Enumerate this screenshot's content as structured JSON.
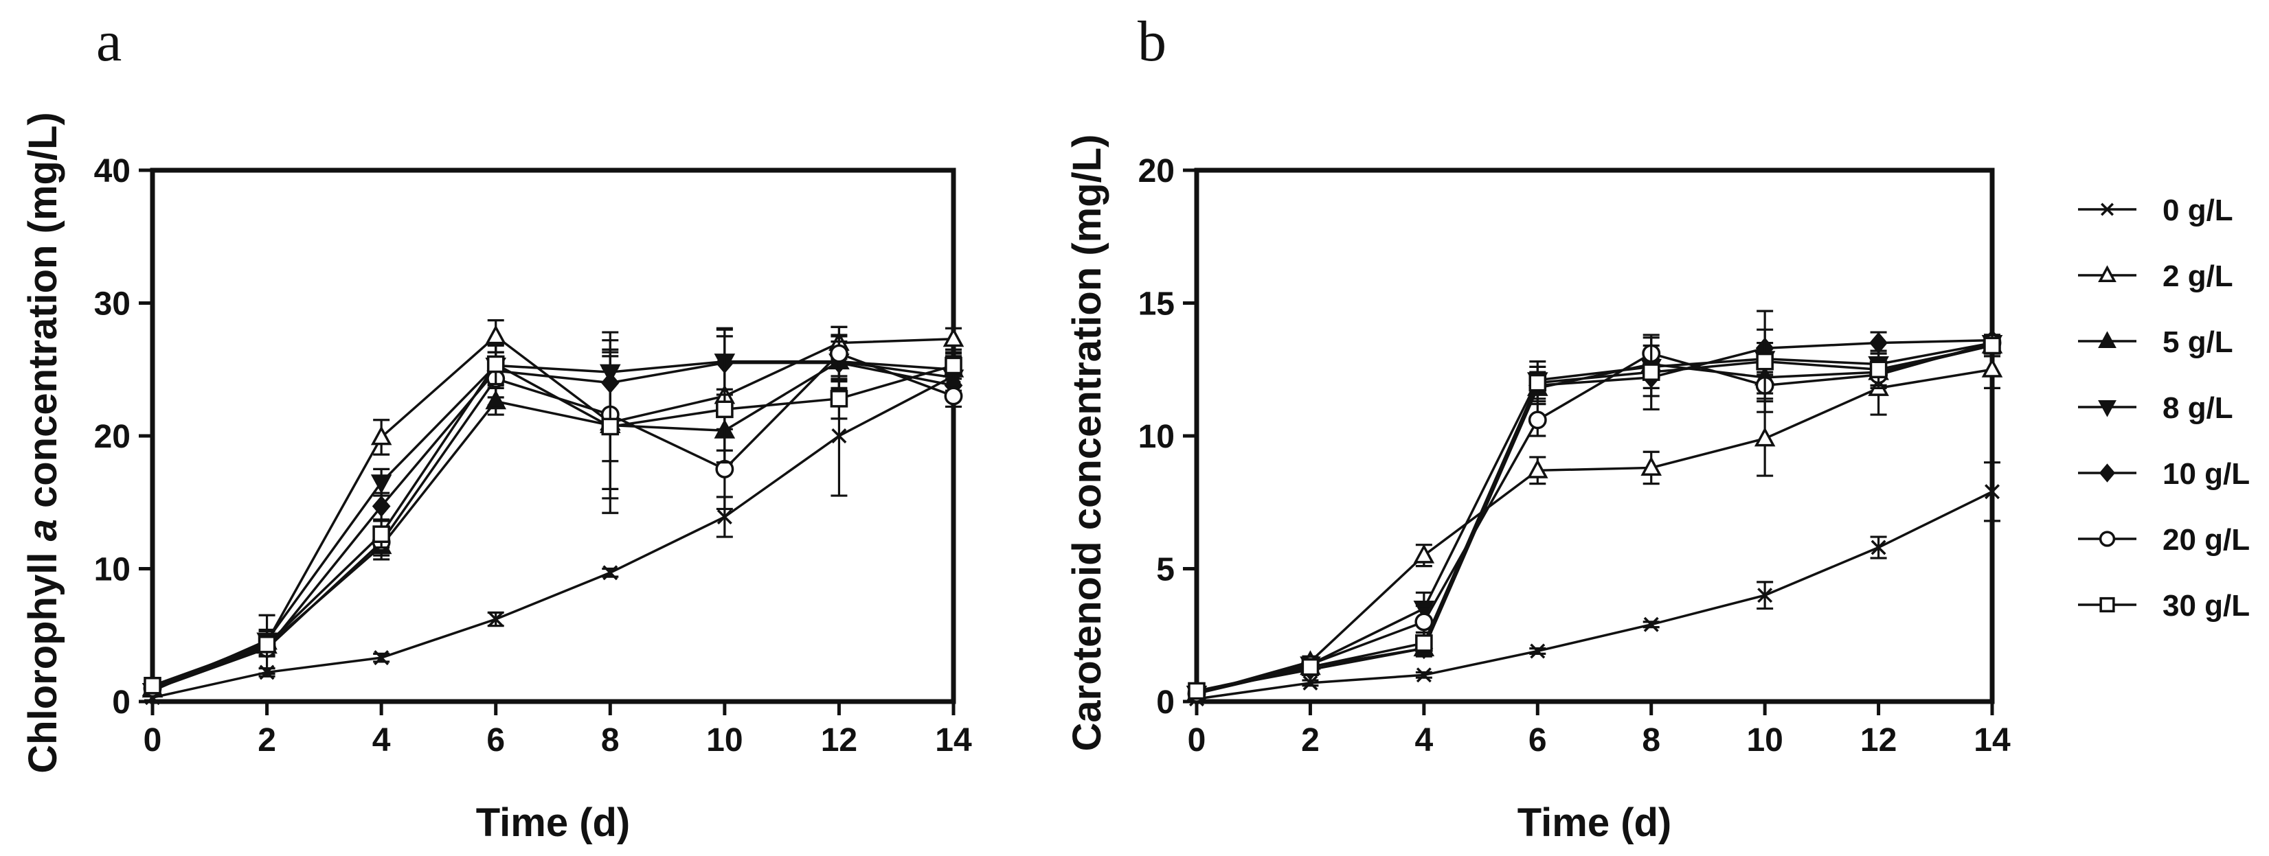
{
  "chart_data": [
    {
      "type": "line",
      "panel": "a",
      "xlabel": "Time (d)",
      "ylabel": "Chlorophyll a concentration (mg/L)",
      "ylabel_parts": {
        "pre": "Chlorophyll ",
        "italic": "a",
        "post": " concentration (mg/L)"
      },
      "xlim": [
        0,
        14
      ],
      "ylim": [
        0,
        40
      ],
      "xticks": [
        0,
        2,
        4,
        6,
        8,
        10,
        12,
        14
      ],
      "yticks": [
        0,
        10,
        20,
        30,
        40
      ],
      "x": [
        0,
        2,
        4,
        6,
        8,
        10,
        12,
        14
      ],
      "series": [
        {
          "name": "0 g/L",
          "marker": "x",
          "values": [
            0.3,
            2.2,
            3.3,
            6.2,
            9.7,
            13.9,
            20.0,
            24.5
          ],
          "err": [
            0.2,
            0.3,
            0.3,
            0.5,
            0.3,
            1.5,
            4.5,
            1.5
          ]
        },
        {
          "name": "2 g/L",
          "marker": "triangle-open",
          "values": [
            1.0,
            4.5,
            19.9,
            27.5,
            21.0,
            23.0,
            27.0,
            27.3
          ],
          "err": [
            0.3,
            0.8,
            1.3,
            1.2,
            5.0,
            5.0,
            1.2,
            0.8
          ]
        },
        {
          "name": "5 g/L",
          "marker": "triangle-filled",
          "values": [
            0.9,
            4.2,
            11.7,
            22.6,
            20.8,
            20.4,
            25.6,
            25.0
          ],
          "err": [
            0.3,
            0.5,
            1.0,
            1.0,
            5.5,
            1.5,
            1.5,
            1.2
          ]
        },
        {
          "name": "8 g/L",
          "marker": "triangle-down",
          "values": [
            0.8,
            4.6,
            16.5,
            25.3,
            24.8,
            25.6,
            25.6,
            24.4
          ],
          "err": [
            0.3,
            0.8,
            1.0,
            1.5,
            3.0,
            2.5,
            2.0,
            1.0
          ]
        },
        {
          "name": "10 g/L",
          "marker": "diamond",
          "values": [
            0.9,
            4.0,
            14.7,
            24.9,
            24.0,
            25.5,
            25.5,
            23.8
          ],
          "err": [
            0.3,
            0.6,
            1.0,
            2.0,
            2.5,
            2.0,
            2.0,
            1.0
          ]
        },
        {
          "name": "20 g/L",
          "marker": "circle-open",
          "values": [
            1.0,
            4.0,
            12.0,
            24.3,
            21.6,
            17.5,
            26.2,
            23.0
          ],
          "err": [
            0.3,
            0.5,
            1.0,
            2.0,
            3.5,
            3.0,
            2.0,
            0.8
          ]
        },
        {
          "name": "30 g/L",
          "marker": "square-open",
          "values": [
            1.2,
            4.3,
            12.6,
            25.4,
            20.7,
            22.0,
            22.8,
            25.3
          ],
          "err": [
            0.3,
            2.2,
            1.0,
            1.5,
            6.5,
            4.0,
            1.5,
            1.0
          ]
        }
      ]
    },
    {
      "type": "line",
      "panel": "b",
      "xlabel": "Time (d)",
      "ylabel": "Carotenoid concentration (mg/L)",
      "xlim": [
        0,
        14
      ],
      "ylim": [
        0,
        20
      ],
      "xticks": [
        0,
        2,
        4,
        6,
        8,
        10,
        12,
        14
      ],
      "yticks": [
        0,
        5,
        10,
        15,
        20
      ],
      "x": [
        0,
        2,
        4,
        6,
        8,
        10,
        12,
        14
      ],
      "series": [
        {
          "name": "0 g/L",
          "marker": "x",
          "values": [
            0.1,
            0.7,
            1.0,
            1.9,
            2.9,
            4.0,
            5.8,
            7.9
          ],
          "err": [
            0.05,
            0.1,
            0.1,
            0.1,
            0.1,
            0.5,
            0.4,
            1.1
          ]
        },
        {
          "name": "2 g/L",
          "marker": "triangle-open",
          "values": [
            0.3,
            1.5,
            5.5,
            8.7,
            8.8,
            9.9,
            11.8,
            12.5
          ],
          "err": [
            0.1,
            0.2,
            0.4,
            0.5,
            0.6,
            1.4,
            1.0,
            0.7
          ]
        },
        {
          "name": "5 g/L",
          "marker": "triangle-filled",
          "values": [
            0.3,
            1.3,
            2.0,
            11.8,
            12.7,
            12.2,
            12.4,
            13.4
          ],
          "err": [
            0.1,
            0.2,
            0.2,
            0.5,
            0.5,
            0.6,
            0.5,
            0.3
          ]
        },
        {
          "name": "8 g/L",
          "marker": "triangle-down",
          "values": [
            0.3,
            1.4,
            3.5,
            12.1,
            12.6,
            12.9,
            12.7,
            13.5
          ],
          "err": [
            0.1,
            0.2,
            0.6,
            0.5,
            0.8,
            0.6,
            0.5,
            0.3
          ]
        },
        {
          "name": "10 g/L",
          "marker": "diamond",
          "values": [
            0.4,
            1.2,
            2.0,
            11.9,
            12.2,
            13.3,
            13.5,
            13.6
          ],
          "err": [
            0.1,
            0.2,
            0.3,
            0.5,
            0.7,
            0.7,
            0.4,
            0.2
          ]
        },
        {
          "name": "20 g/L",
          "marker": "circle-open",
          "values": [
            0.3,
            1.4,
            3.0,
            10.6,
            13.1,
            11.9,
            12.3,
            13.5
          ],
          "err": [
            0.1,
            0.2,
            0.6,
            0.6,
            0.6,
            0.5,
            0.5,
            0.3
          ]
        },
        {
          "name": "30 g/L",
          "marker": "square-open",
          "values": [
            0.4,
            1.3,
            2.2,
            12.0,
            12.4,
            12.8,
            12.5,
            13.4
          ],
          "err": [
            0.1,
            0.3,
            0.4,
            0.8,
            1.4,
            1.9,
            0.6,
            0.4
          ]
        }
      ]
    }
  ],
  "legend": {
    "placement": "right",
    "items": [
      {
        "label": "0 g/L",
        "marker": "x"
      },
      {
        "label": "2 g/L",
        "marker": "triangle-open"
      },
      {
        "label": "5 g/L",
        "marker": "triangle-filled"
      },
      {
        "label": "8 g/L",
        "marker": "triangle-down"
      },
      {
        "label": "10 g/L",
        "marker": "diamond"
      },
      {
        "label": "20 g/L",
        "marker": "circle-open"
      },
      {
        "label": "30 g/L",
        "marker": "square-open"
      }
    ]
  }
}
